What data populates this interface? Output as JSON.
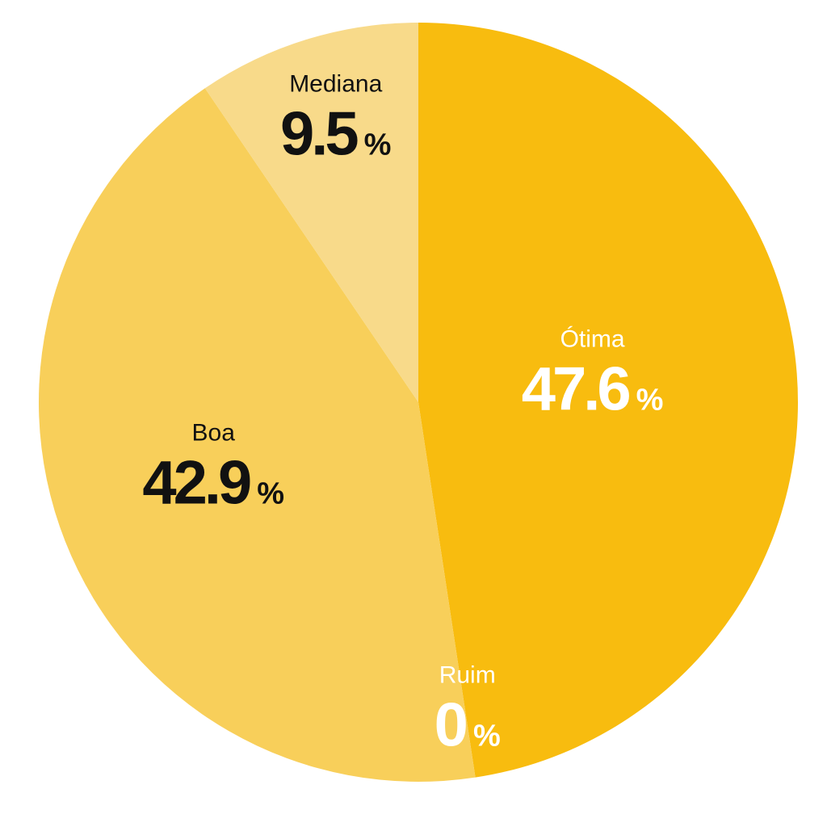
{
  "chart_data": {
    "type": "pie",
    "title": "",
    "categories": [
      "Ótima",
      "Ruim",
      "Boa",
      "Mediana"
    ],
    "values": [
      47.6,
      0,
      42.9,
      9.5
    ],
    "value_suffix": "%",
    "slices": [
      {
        "label": "Ótima",
        "value": 47.6,
        "display": "47.6",
        "suffix": "%",
        "color": "#F8BC0F",
        "text_color": "#FFFFFF"
      },
      {
        "label": "Ruim",
        "value": 0,
        "display": "0",
        "suffix": "%",
        "color": "#F8BC0F",
        "text_color": "#FFFFFF"
      },
      {
        "label": "Boa",
        "value": 42.9,
        "display": "42.9",
        "suffix": "%",
        "color": "#F8CF5A",
        "text_color": "#111111"
      },
      {
        "label": "Mediana",
        "value": 9.5,
        "display": "9.5",
        "suffix": "%",
        "color": "#F8DA8A",
        "text_color": "#111111"
      }
    ],
    "start_angle_deg": 0,
    "direction": "clockwise",
    "legend": "none",
    "grid": false
  }
}
